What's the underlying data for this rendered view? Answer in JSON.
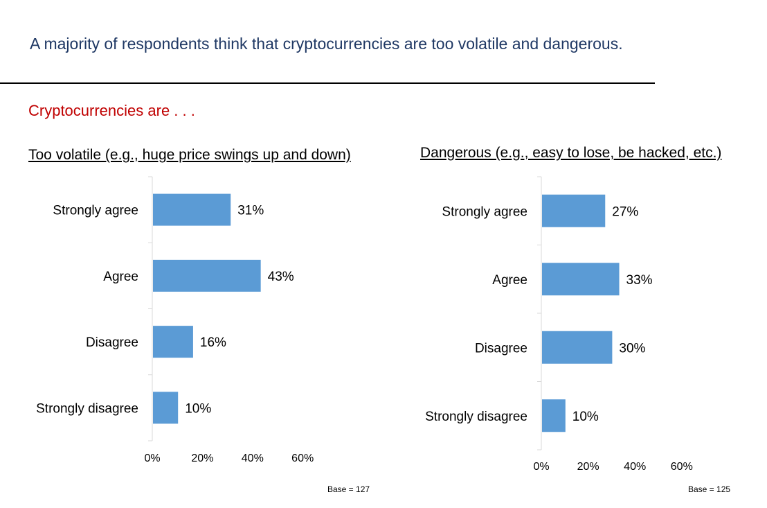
{
  "headline": "A majority of respondents think that cryptocurrencies are too volatile and dangerous.",
  "section_title": "Cryptocurrencies are . . .",
  "colors": {
    "headline": "#1f3864",
    "section": "#c00000",
    "bar": "#5b9bd5",
    "axis": "#d9d9d9"
  },
  "chart_data": [
    {
      "type": "bar",
      "orientation": "horizontal",
      "title": "Too volatile (e.g., huge price swings up and down)",
      "categories": [
        "Strongly agree",
        "Agree",
        "Disagree",
        "Strongly disagree"
      ],
      "values": [
        31,
        43,
        16,
        10
      ],
      "value_labels": [
        "31%",
        "43%",
        "16%",
        "10%"
      ],
      "xticks": [
        "0%",
        "20%",
        "40%",
        "60%"
      ],
      "xlim": [
        0,
        60
      ],
      "grid": false,
      "note": "Base = 127"
    },
    {
      "type": "bar",
      "orientation": "horizontal",
      "title": "Dangerous (e.g., easy to lose, be hacked, etc.)",
      "categories": [
        "Strongly agree",
        "Agree",
        "Disagree",
        "Strongly disagree"
      ],
      "values": [
        27,
        33,
        30,
        10
      ],
      "value_labels": [
        "27%",
        "33%",
        "30%",
        "10%"
      ],
      "xticks": [
        "0%",
        "20%",
        "40%",
        "60%"
      ],
      "xlim": [
        0,
        60
      ],
      "grid": false,
      "note": "Base = 125"
    }
  ]
}
